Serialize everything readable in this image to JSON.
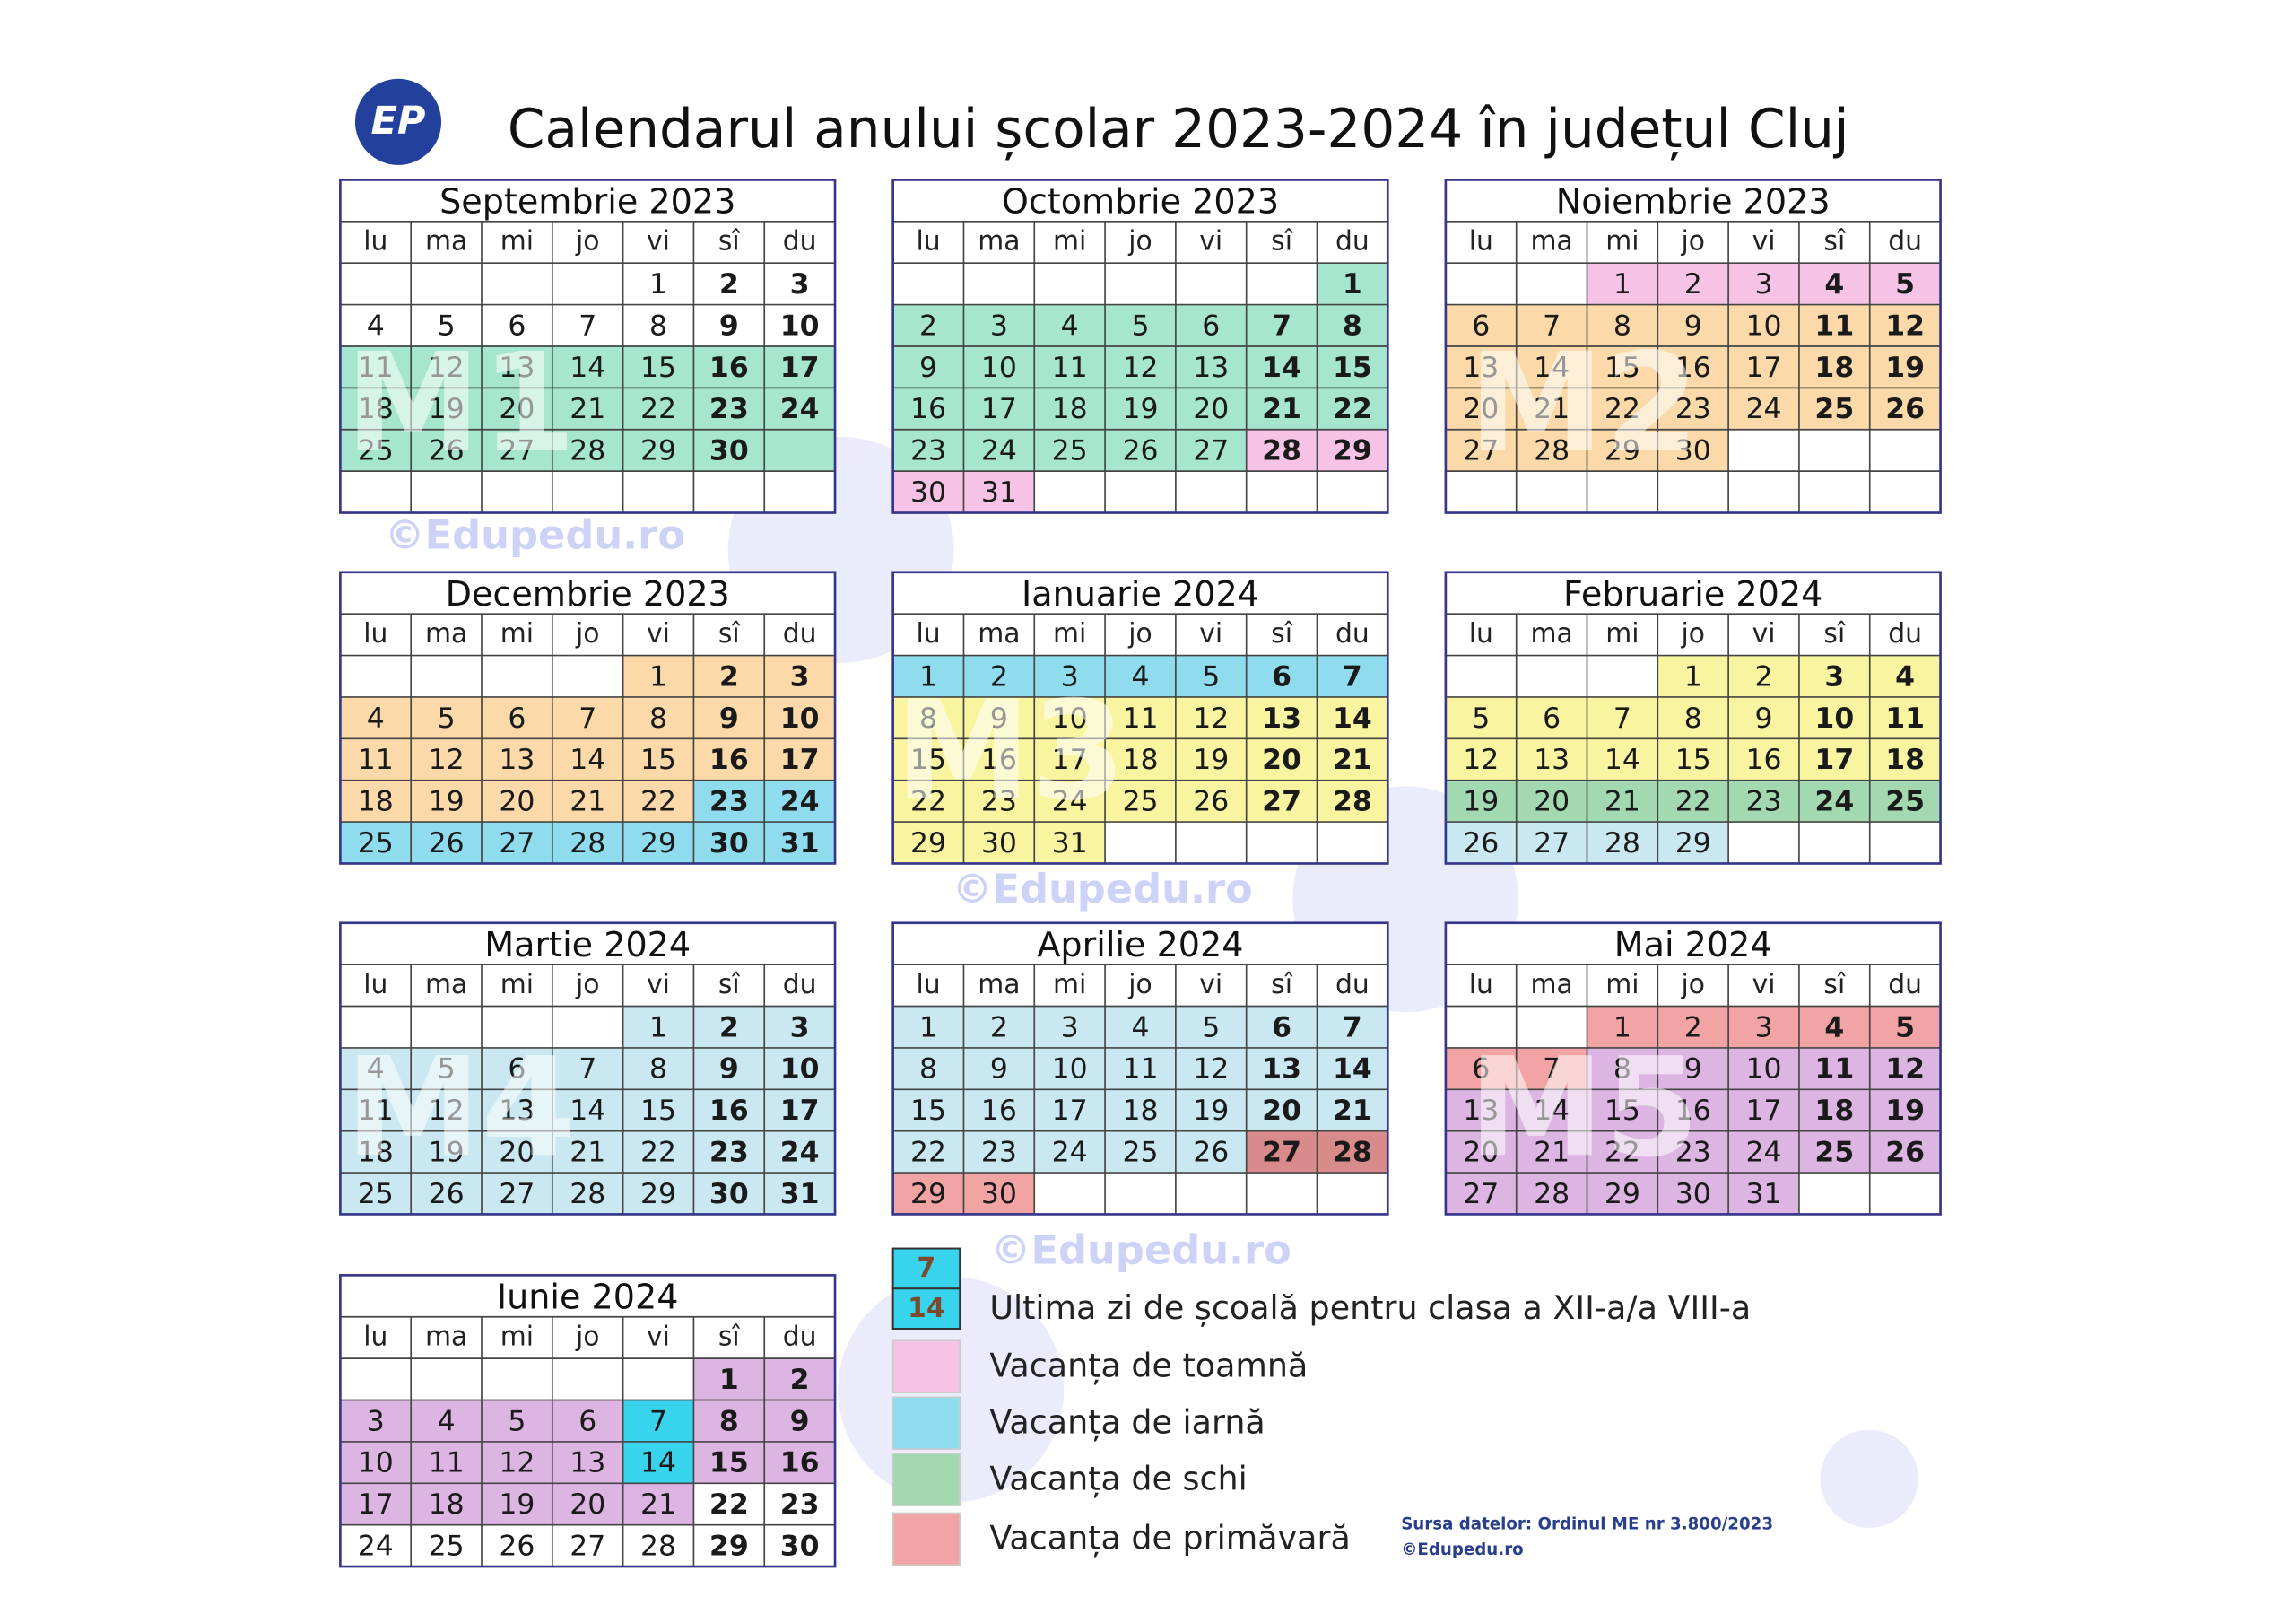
{
  "title": "Calendarul anului școlar 2023-2024 în județul Cluj",
  "logo": "EP",
  "weekdays": [
    "lu",
    "ma",
    "mi",
    "jo",
    "vi",
    "sî",
    "du"
  ],
  "months": [
    {
      "title": "Septembrie 2023",
      "rows": [
        [
          null,
          null,
          null,
          null,
          1,
          2,
          3
        ],
        [
          4,
          5,
          6,
          7,
          8,
          9,
          10
        ],
        [
          11,
          12,
          13,
          14,
          15,
          16,
          17
        ],
        [
          18,
          19,
          20,
          21,
          22,
          23,
          24
        ],
        [
          25,
          26,
          27,
          28,
          29,
          30,
          null
        ],
        [
          null,
          null,
          null,
          null,
          null,
          null,
          null
        ]
      ],
      "fills": [
        [
          null,
          null,
          null,
          null,
          null,
          null,
          null
        ],
        [
          null,
          null,
          null,
          null,
          null,
          null,
          null
        ],
        [
          "#a6e6cf",
          "#a6e6cf",
          "#a6e6cf",
          "#a6e6cf",
          "#a6e6cf",
          "#a6e6cf",
          "#a6e6cf"
        ],
        [
          "#a6e6cf",
          "#a6e6cf",
          "#a6e6cf",
          "#a6e6cf",
          "#a6e6cf",
          "#a6e6cf",
          "#a6e6cf"
        ],
        [
          "#a6e6cf",
          "#a6e6cf",
          "#a6e6cf",
          "#a6e6cf",
          "#a6e6cf",
          "#a6e6cf",
          "#a6e6cf"
        ],
        [
          null,
          null,
          null,
          null,
          null,
          null,
          null
        ]
      ]
    },
    {
      "title": "Octombrie 2023",
      "rows": [
        [
          null,
          null,
          null,
          null,
          null,
          null,
          1
        ],
        [
          2,
          3,
          4,
          5,
          6,
          7,
          8
        ],
        [
          9,
          10,
          11,
          12,
          13,
          14,
          15
        ],
        [
          16,
          17,
          18,
          19,
          20,
          21,
          22
        ],
        [
          23,
          24,
          25,
          26,
          27,
          28,
          29
        ],
        [
          30,
          31,
          null,
          null,
          null,
          null,
          null
        ]
      ],
      "fills": [
        [
          null,
          null,
          null,
          null,
          null,
          null,
          "#a6e6cf"
        ],
        [
          "#a6e6cf",
          "#a6e6cf",
          "#a6e6cf",
          "#a6e6cf",
          "#a6e6cf",
          "#a6e6cf",
          "#a6e6cf"
        ],
        [
          "#a6e6cf",
          "#a6e6cf",
          "#a6e6cf",
          "#a6e6cf",
          "#a6e6cf",
          "#a6e6cf",
          "#a6e6cf"
        ],
        [
          "#a6e6cf",
          "#a6e6cf",
          "#a6e6cf",
          "#a6e6cf",
          "#a6e6cf",
          "#a6e6cf",
          "#a6e6cf"
        ],
        [
          "#a6e6cf",
          "#a6e6cf",
          "#a6e6cf",
          "#a6e6cf",
          "#a6e6cf",
          "#f6c3e6",
          "#f6c3e6"
        ],
        [
          "#f6c3e6",
          "#f6c3e6",
          null,
          null,
          null,
          null,
          null
        ]
      ]
    },
    {
      "title": "Noiembrie 2023",
      "rows": [
        [
          null,
          null,
          1,
          2,
          3,
          4,
          5
        ],
        [
          6,
          7,
          8,
          9,
          10,
          11,
          12
        ],
        [
          13,
          14,
          15,
          16,
          17,
          18,
          19
        ],
        [
          20,
          21,
          22,
          23,
          24,
          25,
          26
        ],
        [
          27,
          28,
          29,
          30,
          null,
          null,
          null
        ],
        [
          null,
          null,
          null,
          null,
          null,
          null,
          null
        ]
      ],
      "fills": [
        [
          null,
          null,
          "#f6c3e6",
          "#f6c3e6",
          "#f6c3e6",
          "#f6c3e6",
          "#f6c3e6"
        ],
        [
          "#fbd9a8",
          "#fbd9a8",
          "#fbd9a8",
          "#fbd9a8",
          "#fbd9a8",
          "#fbd9a8",
          "#fbd9a8"
        ],
        [
          "#fbd9a8",
          "#fbd9a8",
          "#fbd9a8",
          "#fbd9a8",
          "#fbd9a8",
          "#fbd9a8",
          "#fbd9a8"
        ],
        [
          "#fbd9a8",
          "#fbd9a8",
          "#fbd9a8",
          "#fbd9a8",
          "#fbd9a8",
          "#fbd9a8",
          "#fbd9a8"
        ],
        [
          "#fbd9a8",
          "#fbd9a8",
          "#fbd9a8",
          "#fbd9a8",
          null,
          null,
          null
        ],
        [
          null,
          null,
          null,
          null,
          null,
          null,
          null
        ]
      ]
    },
    {
      "title": "Decembrie 2023",
      "rows": [
        [
          null,
          null,
          null,
          null,
          1,
          2,
          3
        ],
        [
          4,
          5,
          6,
          7,
          8,
          9,
          10
        ],
        [
          11,
          12,
          13,
          14,
          15,
          16,
          17
        ],
        [
          18,
          19,
          20,
          21,
          22,
          23,
          24
        ],
        [
          25,
          26,
          27,
          28,
          29,
          30,
          31
        ]
      ],
      "fills": [
        [
          null,
          null,
          null,
          null,
          "#fbd9a8",
          "#fbd9a8",
          "#fbd9a8"
        ],
        [
          "#fbd9a8",
          "#fbd9a8",
          "#fbd9a8",
          "#fbd9a8",
          "#fbd9a8",
          "#fbd9a8",
          "#fbd9a8"
        ],
        [
          "#fbd9a8",
          "#fbd9a8",
          "#fbd9a8",
          "#fbd9a8",
          "#fbd9a8",
          "#fbd9a8",
          "#fbd9a8"
        ],
        [
          "#fbd9a8",
          "#fbd9a8",
          "#fbd9a8",
          "#fbd9a8",
          "#fbd9a8",
          "#8fdcef",
          "#8fdcef"
        ],
        [
          "#8fdcef",
          "#8fdcef",
          "#8fdcef",
          "#8fdcef",
          "#8fdcef",
          "#8fdcef",
          "#8fdcef"
        ]
      ]
    },
    {
      "title": "Ianuarie 2024",
      "rows": [
        [
          1,
          2,
          3,
          4,
          5,
          6,
          7
        ],
        [
          8,
          9,
          10,
          11,
          12,
          13,
          14
        ],
        [
          15,
          16,
          17,
          18,
          19,
          20,
          21
        ],
        [
          22,
          23,
          24,
          25,
          26,
          27,
          28
        ],
        [
          29,
          30,
          31,
          null,
          null,
          null,
          null
        ]
      ],
      "fills": [
        [
          "#8fdcef",
          "#8fdcef",
          "#8fdcef",
          "#8fdcef",
          "#8fdcef",
          "#8fdcef",
          "#8fdcef"
        ],
        [
          "#f8f4a0",
          "#f8f4a0",
          "#f8f4a0",
          "#f8f4a0",
          "#f8f4a0",
          "#f8f4a0",
          "#f8f4a0"
        ],
        [
          "#f8f4a0",
          "#f8f4a0",
          "#f8f4a0",
          "#f8f4a0",
          "#f8f4a0",
          "#f8f4a0",
          "#f8f4a0"
        ],
        [
          "#f8f4a0",
          "#f8f4a0",
          "#f8f4a0",
          "#f8f4a0",
          "#f8f4a0",
          "#f8f4a0",
          "#f8f4a0"
        ],
        [
          "#f8f4a0",
          "#f8f4a0",
          "#f8f4a0",
          null,
          null,
          null,
          null
        ]
      ]
    },
    {
      "title": "Februarie 2024",
      "rows": [
        [
          null,
          null,
          null,
          1,
          2,
          3,
          4
        ],
        [
          5,
          6,
          7,
          8,
          9,
          10,
          11
        ],
        [
          12,
          13,
          14,
          15,
          16,
          17,
          18
        ],
        [
          19,
          20,
          21,
          22,
          23,
          24,
          25
        ],
        [
          26,
          27,
          28,
          29,
          null,
          null,
          null
        ]
      ],
      "fills": [
        [
          null,
          null,
          null,
          "#f8f4a0",
          "#f8f4a0",
          "#f8f4a0",
          "#f8f4a0"
        ],
        [
          "#f8f4a0",
          "#f8f4a0",
          "#f8f4a0",
          "#f8f4a0",
          "#f8f4a0",
          "#f8f4a0",
          "#f8f4a0"
        ],
        [
          "#f8f4a0",
          "#f8f4a0",
          "#f8f4a0",
          "#f8f4a0",
          "#f8f4a0",
          "#f8f4a0",
          "#f8f4a0"
        ],
        [
          "#a3d9b1",
          "#a3d9b1",
          "#a3d9b1",
          "#a3d9b1",
          "#a3d9b1",
          "#a3d9b1",
          "#a3d9b1"
        ],
        [
          "#c9e8f1",
          "#c9e8f1",
          "#c9e8f1",
          "#c9e8f1",
          null,
          null,
          null
        ]
      ]
    },
    {
      "title": "Martie 2024",
      "rows": [
        [
          null,
          null,
          null,
          null,
          1,
          2,
          3
        ],
        [
          4,
          5,
          6,
          7,
          8,
          9,
          10
        ],
        [
          11,
          12,
          13,
          14,
          15,
          16,
          17
        ],
        [
          18,
          19,
          20,
          21,
          22,
          23,
          24
        ],
        [
          25,
          26,
          27,
          28,
          29,
          30,
          31
        ]
      ],
      "fills": [
        [
          null,
          null,
          null,
          null,
          "#c9e8f1",
          "#c9e8f1",
          "#c9e8f1"
        ],
        [
          "#c9e8f1",
          "#c9e8f1",
          "#c9e8f1",
          "#c9e8f1",
          "#c9e8f1",
          "#c9e8f1",
          "#c9e8f1"
        ],
        [
          "#c9e8f1",
          "#c9e8f1",
          "#c9e8f1",
          "#c9e8f1",
          "#c9e8f1",
          "#c9e8f1",
          "#c9e8f1"
        ],
        [
          "#c9e8f1",
          "#c9e8f1",
          "#c9e8f1",
          "#c9e8f1",
          "#c9e8f1",
          "#c9e8f1",
          "#c9e8f1"
        ],
        [
          "#c9e8f1",
          "#c9e8f1",
          "#c9e8f1",
          "#c9e8f1",
          "#c9e8f1",
          "#c9e8f1",
          "#c9e8f1"
        ]
      ]
    },
    {
      "title": "Aprilie 2024",
      "rows": [
        [
          1,
          2,
          3,
          4,
          5,
          6,
          7
        ],
        [
          8,
          9,
          10,
          11,
          12,
          13,
          14
        ],
        [
          15,
          16,
          17,
          18,
          19,
          20,
          21
        ],
        [
          22,
          23,
          24,
          25,
          26,
          27,
          28
        ],
        [
          29,
          30,
          null,
          null,
          null,
          null,
          null
        ]
      ],
      "fills": [
        [
          "#c9e8f1",
          "#c9e8f1",
          "#c9e8f1",
          "#c9e8f1",
          "#c9e8f1",
          "#c9e8f1",
          "#c9e8f1"
        ],
        [
          "#c9e8f1",
          "#c9e8f1",
          "#c9e8f1",
          "#c9e8f1",
          "#c9e8f1",
          "#c9e8f1",
          "#c9e8f1"
        ],
        [
          "#c9e8f1",
          "#c9e8f1",
          "#c9e8f1",
          "#c9e8f1",
          "#c9e8f1",
          "#c9e8f1",
          "#c9e8f1"
        ],
        [
          "#c9e8f1",
          "#c9e8f1",
          "#c9e8f1",
          "#c9e8f1",
          "#c9e8f1",
          "#d98a8a",
          "#d98a8a"
        ],
        [
          "#f2a3a3",
          "#f2a3a3",
          null,
          null,
          null,
          null,
          null
        ]
      ]
    },
    {
      "title": "Mai 2024",
      "rows": [
        [
          null,
          null,
          1,
          2,
          3,
          4,
          5
        ],
        [
          6,
          7,
          8,
          9,
          10,
          11,
          12
        ],
        [
          13,
          14,
          15,
          16,
          17,
          18,
          19
        ],
        [
          20,
          21,
          22,
          23,
          24,
          25,
          26
        ],
        [
          27,
          28,
          29,
          30,
          31,
          null,
          null
        ]
      ],
      "fills": [
        [
          null,
          null,
          "#f2a3a3",
          "#f2a3a3",
          "#f2a3a3",
          "#f2a3a3",
          "#f2a3a3"
        ],
        [
          "#f2a3a3",
          "#f2a3a3",
          "#ddb5e2",
          "#ddb5e2",
          "#ddb5e2",
          "#ddb5e2",
          "#ddb5e2"
        ],
        [
          "#ddb5e2",
          "#ddb5e2",
          "#ddb5e2",
          "#ddb5e2",
          "#ddb5e2",
          "#ddb5e2",
          "#ddb5e2"
        ],
        [
          "#ddb5e2",
          "#ddb5e2",
          "#ddb5e2",
          "#ddb5e2",
          "#ddb5e2",
          "#ddb5e2",
          "#ddb5e2"
        ],
        [
          "#ddb5e2",
          "#ddb5e2",
          "#ddb5e2",
          "#ddb5e2",
          "#ddb5e2",
          null,
          null
        ]
      ]
    },
    {
      "title": "Iunie 2024",
      "rows": [
        [
          null,
          null,
          null,
          null,
          null,
          1,
          2
        ],
        [
          3,
          4,
          5,
          6,
          7,
          8,
          9
        ],
        [
          10,
          11,
          12,
          13,
          14,
          15,
          16
        ],
        [
          17,
          18,
          19,
          20,
          21,
          22,
          23
        ],
        [
          24,
          25,
          26,
          27,
          28,
          29,
          30
        ]
      ],
      "fills": [
        [
          null,
          null,
          null,
          null,
          null,
          "#ddb5e2",
          "#ddb5e2"
        ],
        [
          "#ddb5e2",
          "#ddb5e2",
          "#ddb5e2",
          "#ddb5e2",
          "#38d4ee",
          "#ddb5e2",
          "#ddb5e2"
        ],
        [
          "#ddb5e2",
          "#ddb5e2",
          "#ddb5e2",
          "#ddb5e2",
          "#38d4ee",
          "#ddb5e2",
          "#ddb5e2"
        ],
        [
          "#ddb5e2",
          "#ddb5e2",
          "#ddb5e2",
          "#ddb5e2",
          "#ddb5e2",
          null,
          null
        ],
        [
          null,
          null,
          null,
          null,
          null,
          null,
          null
        ]
      ]
    }
  ],
  "legend": [
    {
      "days": [
        7,
        14
      ],
      "color": "#38d4ee",
      "label": "Ultima zi de școală pentru clasa a XII-a/a VIII-a"
    },
    {
      "color": "#f6c3e6",
      "label": "Vacanța de toamnă"
    },
    {
      "color": "#8fdcef",
      "label": "Vacanța de iarnă"
    },
    {
      "color": "#a3d9b1",
      "label": "Vacanța de schi"
    },
    {
      "color": "#f2a3a3",
      "label": "Vacanța de primăvară"
    }
  ],
  "source": [
    "Sursa datelor: Ordinul ME nr 3.800/2023",
    "©Edupedu.ro"
  ],
  "watermarks": [
    "©Edupedu.ro",
    "©Edupedu.ro",
    "©Edupedu.ro"
  ],
  "modules": [
    "M1",
    "M2",
    "M3",
    "M4",
    "M5"
  ]
}
